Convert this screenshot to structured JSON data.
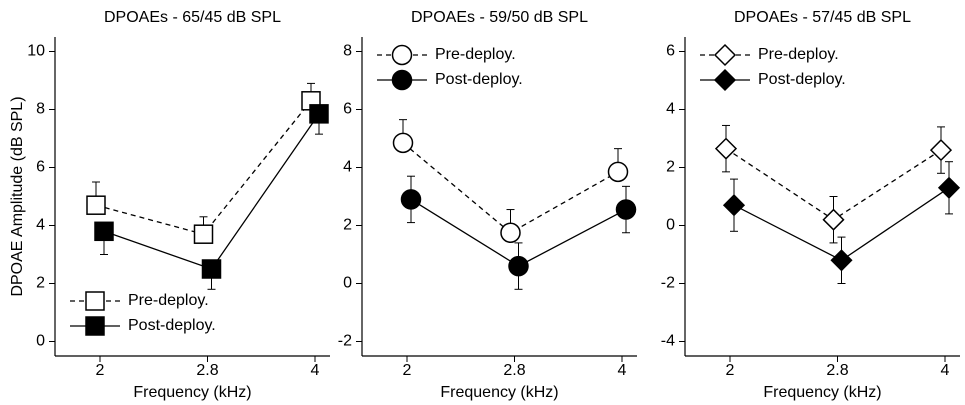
{
  "chart_data": [
    {
      "type": "line",
      "title": "DPOAEs - 65/45 dB SPL",
      "y_label": "DPOAE Amplitude (dB SPL)",
      "x_label": "Frequency (kHz)",
      "categories": [
        "2",
        "2.8",
        "4"
      ],
      "ylim": [
        -0.5,
        10.5
      ],
      "yticks": [
        0,
        2,
        4,
        6,
        8,
        10
      ],
      "marker": "square",
      "legend": "lower left",
      "series": [
        {
          "name": "Pre-deploy.",
          "color": "#000000",
          "values": [
            4.7,
            3.7,
            8.3
          ],
          "error": [
            0.8,
            0.6,
            0.6
          ],
          "error_direction": "up",
          "dashed": true,
          "filled": false
        },
        {
          "name": "Post-deploy.",
          "color": "#000000",
          "values": [
            3.8,
            2.5,
            7.85
          ],
          "error": [
            0.8,
            0.7,
            0.7
          ],
          "error_direction": "down",
          "dashed": false,
          "filled": true
        }
      ]
    },
    {
      "type": "line",
      "title": "DPOAEs - 59/50 dB SPL",
      "x_label": "Frequency (kHz)",
      "categories": [
        "2",
        "2.8",
        "4"
      ],
      "ylim": [
        -2.5,
        8.5
      ],
      "yticks": [
        -2,
        0,
        2,
        4,
        6,
        8
      ],
      "marker": "circle",
      "legend": "upper left",
      "series": [
        {
          "name": "Pre-deploy.",
          "color": "#000000",
          "values": [
            4.85,
            1.75,
            3.85
          ],
          "error": [
            0.8,
            0.8,
            0.8
          ],
          "error_direction": "up",
          "dashed": true,
          "filled": false
        },
        {
          "name": "Post-deploy.",
          "color": "#000000",
          "values": [
            2.9,
            0.6,
            2.55
          ],
          "error": [
            0.8,
            0.8,
            0.8
          ],
          "error_direction": "both",
          "dashed": false,
          "filled": true
        }
      ]
    },
    {
      "type": "line",
      "title": "DPOAEs - 57/45 dB SPL",
      "x_label": "Frequency (kHz)",
      "categories": [
        "2",
        "2.8",
        "4"
      ],
      "ylim": [
        -4.5,
        6.5
      ],
      "yticks": [
        -4,
        -2,
        0,
        2,
        4,
        6
      ],
      "marker": "diamond",
      "legend": "upper left",
      "series": [
        {
          "name": "Pre-deploy.",
          "color": "#000000",
          "values": [
            2.65,
            0.2,
            2.6
          ],
          "error": [
            0.8,
            0.8,
            0.8
          ],
          "error_direction": "both",
          "dashed": true,
          "filled": false
        },
        {
          "name": "Post-deploy.",
          "color": "#000000",
          "values": [
            0.7,
            -1.2,
            1.3
          ],
          "error": [
            0.9,
            0.8,
            0.9
          ],
          "error_direction": "both",
          "dashed": false,
          "filled": true
        }
      ]
    }
  ]
}
